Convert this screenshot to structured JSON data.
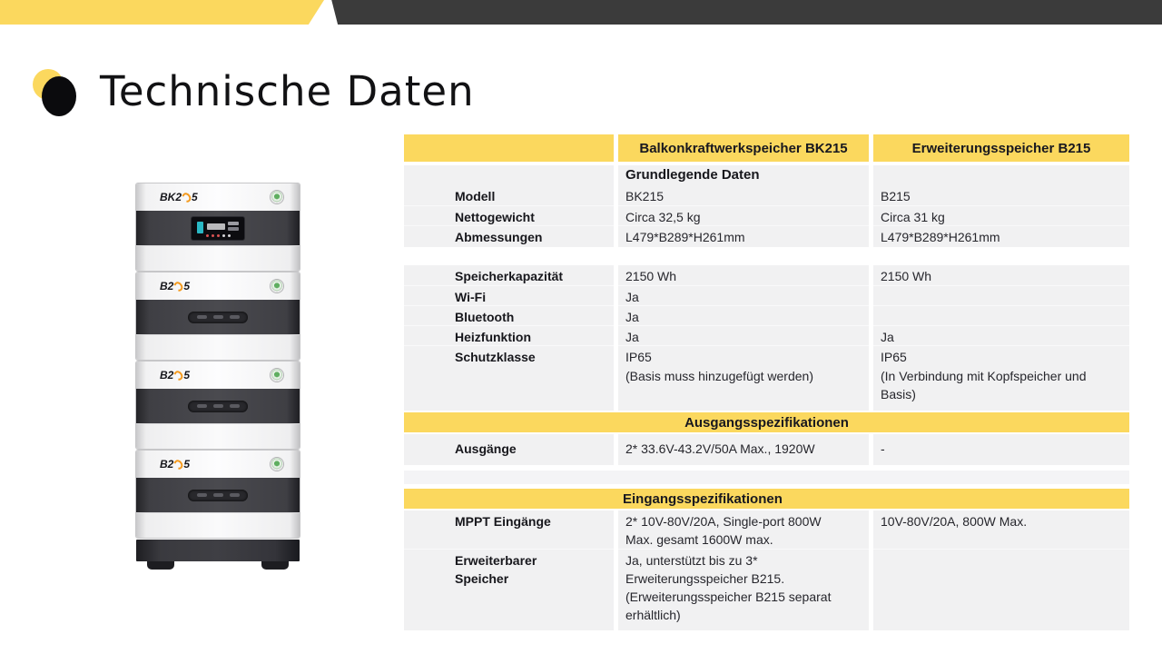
{
  "slide": {
    "title": "Technische Daten"
  },
  "colors": {
    "accent_yellow": "#FBD85E",
    "banner_dark": "#3B3B3B",
    "logo_orange": "#F59A1D",
    "power_button_green": "#58A85A",
    "row_gray": "#F1F1F2"
  },
  "product": {
    "head_unit": {
      "logo_prefix": "BK2",
      "logo_suffix": "5"
    },
    "expansion_unit": {
      "logo_prefix": "B2",
      "logo_suffix": "5"
    }
  },
  "table": {
    "header": {
      "col2": "Balkonkraftwerkspeicher BK215",
      "col3": "Erweiterungsspeicher B215"
    },
    "basic": {
      "title": "Grundlegende Daten",
      "rows": [
        {
          "label": "Modell",
          "bk215": "BK215",
          "b215": "B215"
        },
        {
          "label": "Nettogewicht",
          "bk215": "Circa 32,5 kg",
          "b215": "Circa 31 kg"
        },
        {
          "label": "Abmessungen",
          "bk215": "L479*B289*H261mm",
          "b215": "L479*B289*H261mm"
        },
        {
          "label": "Speicherkapazität",
          "bk215": "2150 Wh",
          "b215": "2150 Wh"
        },
        {
          "label": "Wi-Fi",
          "bk215": "Ja",
          "b215": ""
        },
        {
          "label": "Bluetooth",
          "bk215": "Ja",
          "b215": ""
        },
        {
          "label": "Heizfunktion",
          "bk215": "Ja",
          "b215": "Ja"
        },
        {
          "label": "Schutzklasse",
          "bk215": "IP65",
          "b215": "IP65"
        },
        {
          "label": "",
          "bk215": "(Basis muss hinzugefügt werden)",
          "b215": "(In Verbindung mit Kopfspeicher und\nBasis)"
        }
      ]
    },
    "output": {
      "title": "Ausgangsspezifikationen",
      "rows": [
        {
          "label": "Ausgänge",
          "bk215": "2* 33.6V-43.2V/50A Max., 1920W",
          "b215": "-"
        }
      ]
    },
    "input": {
      "title": "Eingangsspezifikationen",
      "rows": [
        {
          "label": "MPPT Eingänge",
          "bk215": "2* 10V-80V/20A, Single-port 800W\nMax. gesamt 1600W max.",
          "b215": "10V-80V/20A, 800W Max."
        },
        {
          "label": "Erweiterbarer\nSpeicher",
          "bk215": "Ja, unterstützt bis zu 3*\nErweiterungsspeicher B215.\n(Erweiterungsspeicher B215 separat\nerhältlich)",
          "b215": ""
        }
      ]
    }
  }
}
